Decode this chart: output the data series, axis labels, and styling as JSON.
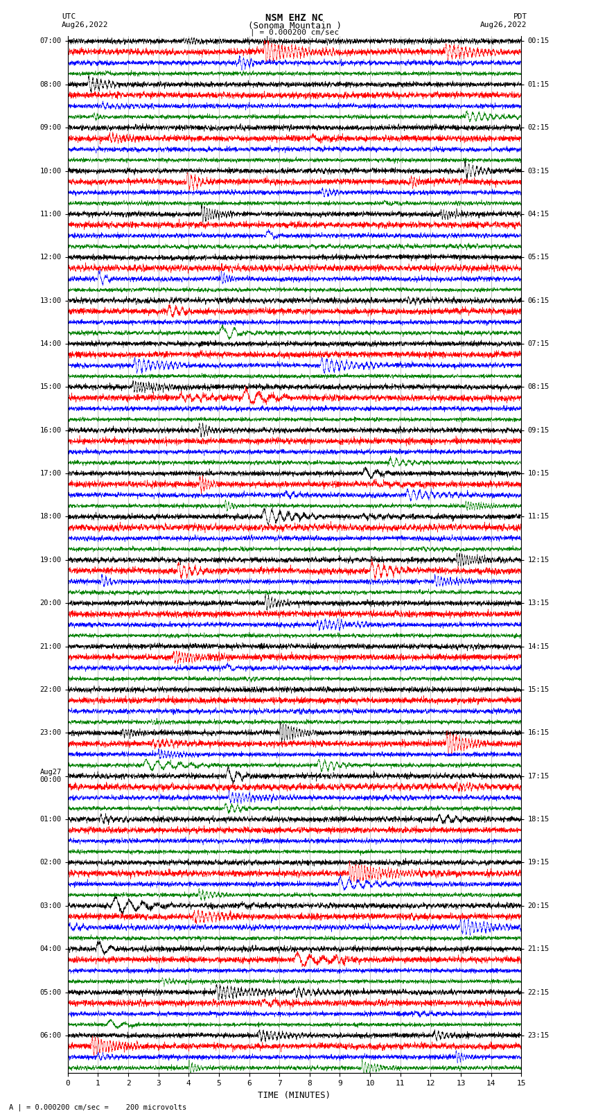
{
  "title_line1": "NSM EHZ NC",
  "title_line2": "(Sonoma Mountain )",
  "title_line3": "| = 0.000200 cm/sec",
  "left_header_line1": "UTC",
  "left_header_line2": "Aug26,2022",
  "right_header_line1": "PDT",
  "right_header_line2": "Aug26,2022",
  "bottom_label": "TIME (MINUTES)",
  "bottom_note": "A | = 0.000200 cm/sec =    200 microvolts",
  "xlabel_ticks": [
    0,
    1,
    2,
    3,
    4,
    5,
    6,
    7,
    8,
    9,
    10,
    11,
    12,
    13,
    14,
    15
  ],
  "utc_labels": [
    "07:00",
    "08:00",
    "09:00",
    "10:00",
    "11:00",
    "12:00",
    "13:00",
    "14:00",
    "15:00",
    "16:00",
    "17:00",
    "18:00",
    "19:00",
    "20:00",
    "21:00",
    "22:00",
    "23:00",
    "Aug27\n00:00",
    "01:00",
    "02:00",
    "03:00",
    "04:00",
    "05:00",
    "06:00"
  ],
  "pdt_labels": [
    "00:15",
    "01:15",
    "02:15",
    "03:15",
    "04:15",
    "05:15",
    "06:15",
    "07:15",
    "08:15",
    "09:15",
    "10:15",
    "11:15",
    "12:15",
    "13:15",
    "14:15",
    "15:15",
    "16:15",
    "17:15",
    "18:15",
    "19:15",
    "20:15",
    "21:15",
    "22:15",
    "23:15"
  ],
  "trace_colors": [
    "black",
    "red",
    "blue",
    "green"
  ],
  "background_color": "white",
  "n_hours": 24,
  "n_traces_per_hour": 4,
  "n_pts": 3600,
  "base_noise": 0.28,
  "amp_scale": 0.42
}
